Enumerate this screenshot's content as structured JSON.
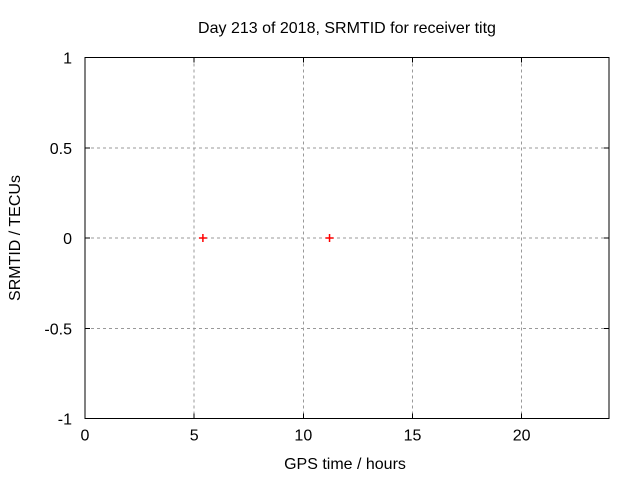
{
  "chart_data": {
    "type": "scatter",
    "title": "Day 213 of 2018, SRMTID for receiver titg",
    "xlabel": "GPS time / hours",
    "ylabel": "SRMTID / TECUs",
    "xlim": [
      0,
      24
    ],
    "ylim": [
      -1,
      1
    ],
    "xticks": [
      0,
      5,
      10,
      15,
      20
    ],
    "xtick_labels": [
      "0",
      "5",
      "10",
      "15",
      "20"
    ],
    "yticks": [
      1,
      0.5,
      0,
      -0.5,
      -1
    ],
    "ytick_labels": [
      "1",
      "0.5",
      "0",
      "-0.5",
      "-1"
    ],
    "grid": true,
    "legend": "none",
    "series": [
      {
        "name": "SRMTID",
        "marker": "plus",
        "color": "#ff0000",
        "points": [
          [
            5.4,
            0
          ],
          [
            11.2,
            0
          ]
        ]
      }
    ],
    "colors": {
      "background": "#ffffff",
      "axis": "#000000",
      "text": "#000000",
      "grid": "#999999"
    }
  }
}
